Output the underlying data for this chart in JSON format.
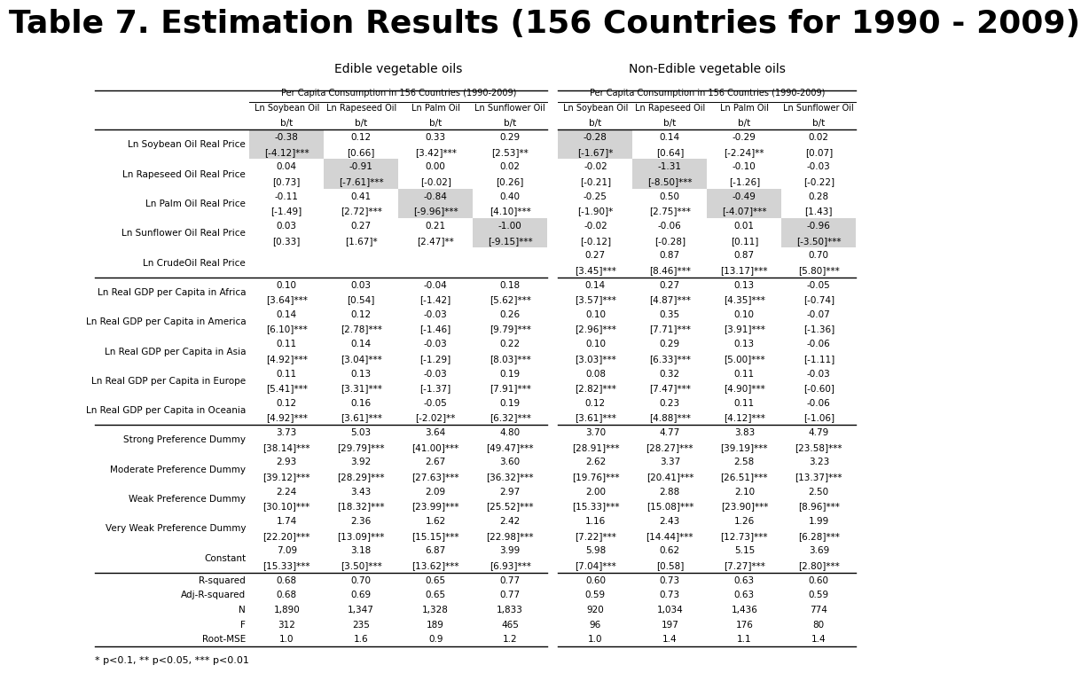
{
  "title": "Table 7. Estimation Results (156 Countries for 1990 - 2009)",
  "subtitle_left": "Edible vegetable oils",
  "subtitle_right": "Non-Edible vegetable oils",
  "header1": "Per Capita Consumption in 156 Countries (1990-2009)",
  "col_headers": [
    "Ln Soybean Oil",
    "Ln Rapeseed Oil",
    "Ln Palm Oil",
    "Ln Sunflower Oil"
  ],
  "row_labels": [
    "Ln Soybean Oil Real Price",
    "Ln Rapeseed Oil Real Price",
    "Ln Palm Oil Real Price",
    "Ln Sunflower Oil Real Price",
    "Ln CrudeOil Real Price",
    "Ln Real GDP per Capita in Africa",
    "Ln Real GDP per Capita in America",
    "Ln Real GDP per Capita in Asia",
    "Ln Real GDP per Capita in Europe",
    "Ln Real GDP per Capita in Oceania",
    "Strong Preference Dummy",
    "Moderate Preference Dummy",
    "Weak Preference Dummy",
    "Very Weak Preference Dummy",
    "Constant",
    "R-squared",
    "Adj-R-squared",
    "N",
    "F",
    "Root-MSE"
  ],
  "edible_data": [
    [
      "-0.38",
      "0.12",
      "0.33",
      "0.29"
    ],
    [
      "[-4.12]***",
      "[0.66]",
      "[3.42]***",
      "[2.53]**"
    ],
    [
      "0.04",
      "-0.91",
      "0.00",
      "0.02"
    ],
    [
      "[0.73]",
      "[-7.61]***",
      "[-0.02]",
      "[0.26]"
    ],
    [
      "-0.11",
      "0.41",
      "-0.84",
      "0.40"
    ],
    [
      "[-1.49]",
      "[2.72]***",
      "[-9.96]***",
      "[4.10]***"
    ],
    [
      "0.03",
      "0.27",
      "0.21",
      "-1.00"
    ],
    [
      "[0.33]",
      "[1.67]*",
      "[2.47]**",
      "[-9.15]***"
    ],
    [
      "",
      "",
      "",
      ""
    ],
    [
      "",
      "",
      "",
      ""
    ],
    [
      "0.10",
      "0.03",
      "-0.04",
      "0.18"
    ],
    [
      "[3.64]***",
      "[0.54]",
      "[-1.42]",
      "[5.62]***"
    ],
    [
      "0.14",
      "0.12",
      "-0.03",
      "0.26"
    ],
    [
      "[6.10]***",
      "[2.78]***",
      "[-1.46]",
      "[9.79]***"
    ],
    [
      "0.11",
      "0.14",
      "-0.03",
      "0.22"
    ],
    [
      "[4.92]***",
      "[3.04]***",
      "[-1.29]",
      "[8.03]***"
    ],
    [
      "0.11",
      "0.13",
      "-0.03",
      "0.19"
    ],
    [
      "[5.41]***",
      "[3.31]***",
      "[-1.37]",
      "[7.91]***"
    ],
    [
      "0.12",
      "0.16",
      "-0.05",
      "0.19"
    ],
    [
      "[4.92]***",
      "[3.61]***",
      "[-2.02]**",
      "[6.32]***"
    ],
    [
      "3.73",
      "5.03",
      "3.64",
      "4.80"
    ],
    [
      "[38.14]***",
      "[29.79]***",
      "[41.00]***",
      "[49.47]***"
    ],
    [
      "2.93",
      "3.92",
      "2.67",
      "3.60"
    ],
    [
      "[39.12]***",
      "[28.29]***",
      "[27.63]***",
      "[36.32]***"
    ],
    [
      "2.24",
      "3.43",
      "2.09",
      "2.97"
    ],
    [
      "[30.10]***",
      "[18.32]***",
      "[23.99]***",
      "[25.52]***"
    ],
    [
      "1.74",
      "2.36",
      "1.62",
      "2.42"
    ],
    [
      "[22.20]***",
      "[13.09]***",
      "[15.15]***",
      "[22.98]***"
    ],
    [
      "7.09",
      "3.18",
      "6.87",
      "3.99"
    ],
    [
      "[15.33]***",
      "[3.50]***",
      "[13.62]***",
      "[6.93]***"
    ],
    [
      "0.68",
      "0.70",
      "0.65",
      "0.77"
    ],
    [
      "0.68",
      "0.69",
      "0.65",
      "0.77"
    ],
    [
      "1,890",
      "1,347",
      "1,328",
      "1,833"
    ],
    [
      "312",
      "235",
      "189",
      "465"
    ],
    [
      "1.0",
      "1.6",
      "0.9",
      "1.2"
    ]
  ],
  "nonedible_data": [
    [
      "-0.28",
      "0.14",
      "-0.29",
      "0.02"
    ],
    [
      "[-1.67]*",
      "[0.64]",
      "[-2.24]**",
      "[0.07]"
    ],
    [
      "-0.02",
      "-1.31",
      "-0.10",
      "-0.03"
    ],
    [
      "[-0.21]",
      "[-8.50]***",
      "[-1.26]",
      "[-0.22]"
    ],
    [
      "-0.25",
      "0.50",
      "-0.49",
      "0.28"
    ],
    [
      "[-1.90]*",
      "[2.75]***",
      "[-4.07]***",
      "[1.43]"
    ],
    [
      "-0.02",
      "-0.06",
      "0.01",
      "-0.96"
    ],
    [
      "[-0.12]",
      "[-0.28]",
      "[0.11]",
      "[-3.50]***"
    ],
    [
      "0.27",
      "0.87",
      "0.87",
      "0.70"
    ],
    [
      "[3.45]***",
      "[8.46]***",
      "[13.17]***",
      "[5.80]***"
    ],
    [
      "0.14",
      "0.27",
      "0.13",
      "-0.05"
    ],
    [
      "[3.57]***",
      "[4.87]***",
      "[4.35]***",
      "[-0.74]"
    ],
    [
      "0.10",
      "0.35",
      "0.10",
      "-0.07"
    ],
    [
      "[2.96]***",
      "[7.71]***",
      "[3.91]***",
      "[-1.36]"
    ],
    [
      "0.10",
      "0.29",
      "0.13",
      "-0.06"
    ],
    [
      "[3.03]***",
      "[6.33]***",
      "[5.00]***",
      "[-1.11]"
    ],
    [
      "0.08",
      "0.32",
      "0.11",
      "-0.03"
    ],
    [
      "[2.82]***",
      "[7.47]***",
      "[4.90]***",
      "[-0.60]"
    ],
    [
      "0.12",
      "0.23",
      "0.11",
      "-0.06"
    ],
    [
      "[3.61]***",
      "[4.88]***",
      "[4.12]***",
      "[-1.06]"
    ],
    [
      "3.70",
      "4.77",
      "3.83",
      "4.79"
    ],
    [
      "[28.91]***",
      "[28.27]***",
      "[39.19]***",
      "[23.58]***"
    ],
    [
      "2.62",
      "3.37",
      "2.58",
      "3.23"
    ],
    [
      "[19.76]***",
      "[20.41]***",
      "[26.51]***",
      "[13.37]***"
    ],
    [
      "2.00",
      "2.88",
      "2.10",
      "2.50"
    ],
    [
      "[15.33]***",
      "[15.08]***",
      "[23.90]***",
      "[8.96]***"
    ],
    [
      "1.16",
      "2.43",
      "1.26",
      "1.99"
    ],
    [
      "[7.22]***",
      "[14.44]***",
      "[12.73]***",
      "[6.28]***"
    ],
    [
      "5.98",
      "0.62",
      "5.15",
      "3.69"
    ],
    [
      "[7.04]***",
      "[0.58]",
      "[7.27]***",
      "[2.80]***"
    ],
    [
      "0.60",
      "0.73",
      "0.63",
      "0.60"
    ],
    [
      "0.59",
      "0.73",
      "0.63",
      "0.59"
    ],
    [
      "920",
      "1,034",
      "1,436",
      "774"
    ],
    [
      "96",
      "197",
      "176",
      "80"
    ],
    [
      "1.0",
      "1.4",
      "1.1",
      "1.4"
    ]
  ],
  "shade_color": "#d3d3d3",
  "background_color": "#ffffff",
  "title_fontsize": 26,
  "subtitle_fontsize": 10,
  "cell_fontsize": 7.5
}
